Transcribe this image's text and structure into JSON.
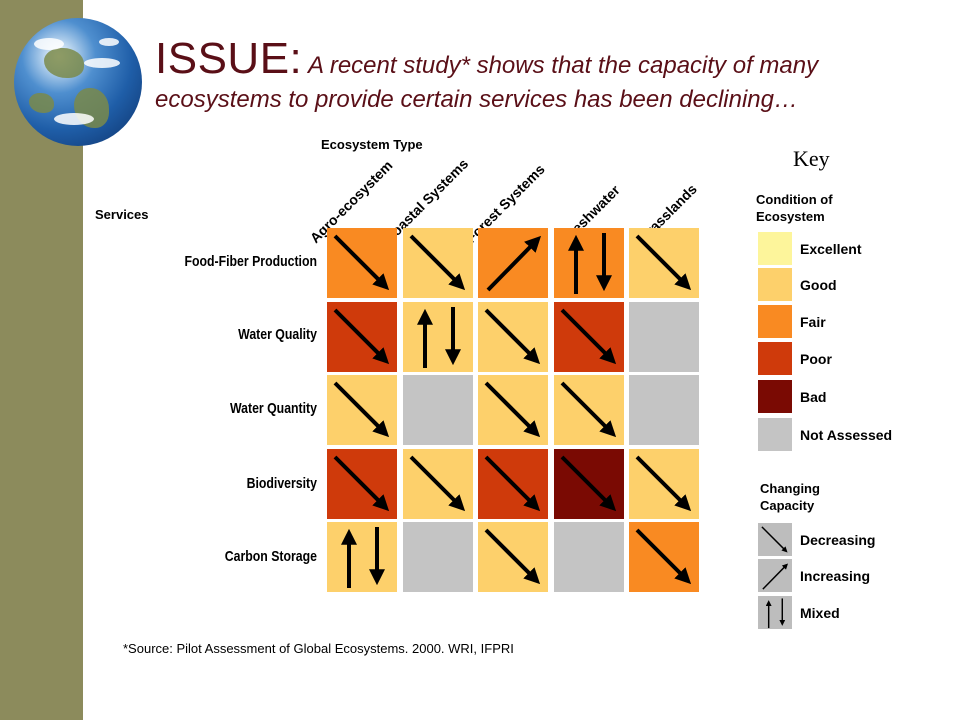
{
  "header": {
    "issue_label": "ISSUE:",
    "title_rest": " A recent study* shows that the capacity of many ecosystems to provide certain services has been declining…"
  },
  "labels": {
    "ecosystem_type": "Ecosystem Type",
    "services": "Services"
  },
  "columns": [
    "Agro-ecosystem",
    "Coastal Systems",
    "Forest Systems",
    "Freshwater",
    "Grasslands"
  ],
  "rows": [
    "Food-Fiber Production",
    "Water Quality",
    "Water Quantity",
    "Biodiversity",
    "Carbon Storage"
  ],
  "colors": {
    "excellent": "#fdf59b",
    "good": "#fdd06b",
    "fair": "#f98a22",
    "poor": "#cf3a0b",
    "bad": "#7a0a03",
    "not_assessed": "#c4c4c4"
  },
  "matrix": [
    [
      {
        "condition": "fair",
        "trend": "decreasing"
      },
      {
        "condition": "good",
        "trend": "decreasing"
      },
      {
        "condition": "fair",
        "trend": "increasing"
      },
      {
        "condition": "fair",
        "trend": "mixed"
      },
      {
        "condition": "good",
        "trend": "decreasing"
      }
    ],
    [
      {
        "condition": "poor",
        "trend": "decreasing"
      },
      {
        "condition": "good",
        "trend": "mixed"
      },
      {
        "condition": "good",
        "trend": "decreasing"
      },
      {
        "condition": "poor",
        "trend": "decreasing"
      },
      {
        "condition": "not_assessed",
        "trend": "none"
      }
    ],
    [
      {
        "condition": "good",
        "trend": "decreasing"
      },
      {
        "condition": "not_assessed",
        "trend": "none"
      },
      {
        "condition": "good",
        "trend": "decreasing"
      },
      {
        "condition": "good",
        "trend": "decreasing"
      },
      {
        "condition": "not_assessed",
        "trend": "none"
      }
    ],
    [
      {
        "condition": "poor",
        "trend": "decreasing"
      },
      {
        "condition": "good",
        "trend": "decreasing"
      },
      {
        "condition": "poor",
        "trend": "decreasing"
      },
      {
        "condition": "bad",
        "trend": "decreasing"
      },
      {
        "condition": "good",
        "trend": "decreasing"
      }
    ],
    [
      {
        "condition": "good",
        "trend": "mixed"
      },
      {
        "condition": "not_assessed",
        "trend": "none"
      },
      {
        "condition": "good",
        "trend": "decreasing"
      },
      {
        "condition": "not_assessed",
        "trend": "none"
      },
      {
        "condition": "fair",
        "trend": "decreasing"
      }
    ]
  ],
  "key": {
    "title": "Key",
    "condition_heading_1": "Condition of",
    "condition_heading_2": "Ecosystem",
    "conditions": [
      {
        "id": "excellent",
        "label": "Excellent"
      },
      {
        "id": "good",
        "label": "Good"
      },
      {
        "id": "fair",
        "label": "Fair"
      },
      {
        "id": "poor",
        "label": "Poor"
      },
      {
        "id": "bad",
        "label": "Bad"
      },
      {
        "id": "not_assessed",
        "label": "Not Assessed"
      }
    ],
    "capacity_heading_1": "Changing",
    "capacity_heading_2": "Capacity",
    "trends": [
      {
        "id": "decreasing",
        "label": "Decreasing"
      },
      {
        "id": "increasing",
        "label": "Increasing"
      },
      {
        "id": "mixed",
        "label": "Mixed"
      }
    ]
  },
  "source": "*Source:  Pilot Assessment of Global Ecosystems.  2000.  WRI, IFPRI"
}
